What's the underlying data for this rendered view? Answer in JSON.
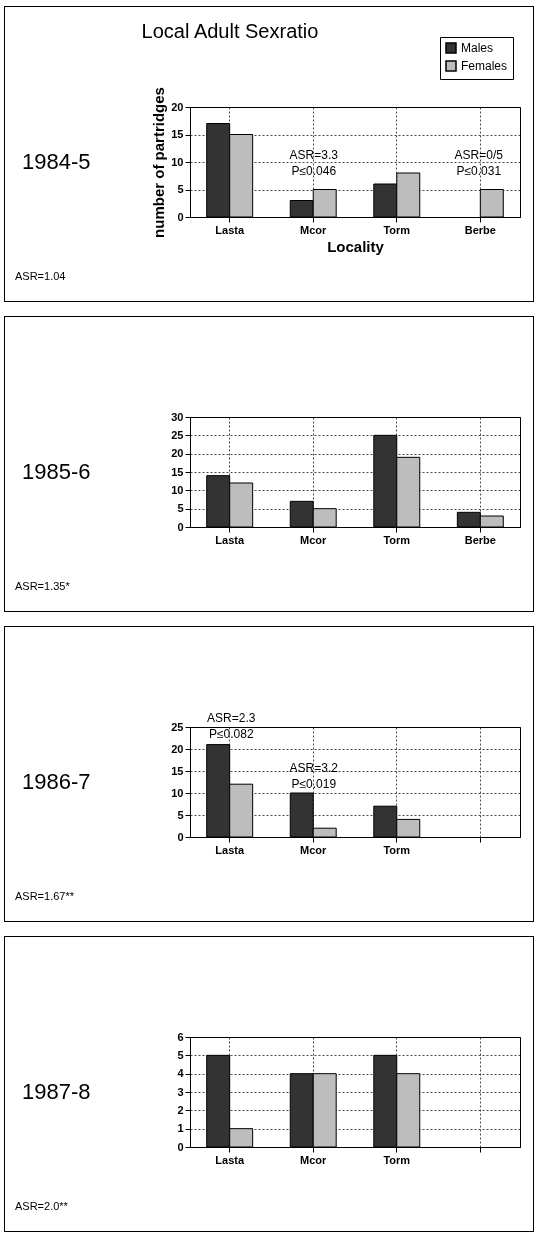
{
  "chart_data": [
    {
      "type": "bar",
      "title": "Local Adult Sexratio",
      "subtitle": "1984-5",
      "xlabel": "Locality",
      "ylabel": "number of partridges",
      "legend": "top right",
      "grid": true,
      "categories": [
        "Lasta",
        "Mcor",
        "Torm",
        "Berbe"
      ],
      "series": [
        {
          "name": "Males",
          "color": "#333333",
          "values": [
            17,
            3,
            6,
            null
          ]
        },
        {
          "name": "Females",
          "color": "#bdbdbd",
          "values": [
            15,
            5,
            8,
            5
          ]
        }
      ],
      "ylim": [
        0,
        20
      ],
      "yticks": [
        0,
        5,
        10,
        15,
        20
      ],
      "annotations": [
        "ASR=3.3\nP≤0.046",
        "ASR=0/5\nP≤0.031",
        "ASR=1.04"
      ]
    },
    {
      "type": "bar",
      "subtitle": "1985-6",
      "grid": true,
      "categories": [
        "Lasta",
        "Mcor",
        "Torm",
        "Berbe"
      ],
      "series": [
        {
          "color": "#333333",
          "values": [
            14,
            7,
            25,
            4
          ]
        },
        {
          "color": "#bdbdbd",
          "values": [
            12,
            5,
            19,
            3
          ]
        }
      ],
      "ylim": [
        0,
        30
      ],
      "yticks": [
        0,
        5,
        10,
        15,
        20,
        25,
        30
      ],
      "annotations": [
        "ASR=1.35*"
      ]
    },
    {
      "type": "bar",
      "subtitle": "1986-7",
      "grid": true,
      "categories": [
        "Lasta",
        "Mcor",
        "Torm",
        null
      ],
      "series": [
        {
          "color": "#333333",
          "values": [
            21,
            10,
            7,
            null
          ]
        },
        {
          "color": "#bdbdbd",
          "values": [
            12,
            2,
            4,
            null
          ]
        }
      ],
      "ylim": [
        0,
        25
      ],
      "yticks": [
        0,
        5,
        10,
        15,
        20,
        25
      ],
      "annotations": [
        "ASR=2.3\nP≤0.082",
        "ASR=3.2\nP≤0.019",
        "ASR=1.67**"
      ]
    },
    {
      "type": "bar",
      "subtitle": "1987-8",
      "grid": true,
      "categories": [
        "Lasta",
        "Mcor",
        "Torm",
        null
      ],
      "series": [
        {
          "color": "#333333",
          "values": [
            5,
            4,
            5,
            null
          ]
        },
        {
          "color": "#bdbdbd",
          "values": [
            1,
            4,
            4,
            null
          ]
        }
      ],
      "ylim": [
        0,
        6
      ],
      "yticks": [
        0,
        1,
        2,
        3,
        4,
        5,
        6
      ],
      "annotations": [
        "ASR=2.0**"
      ]
    }
  ]
}
